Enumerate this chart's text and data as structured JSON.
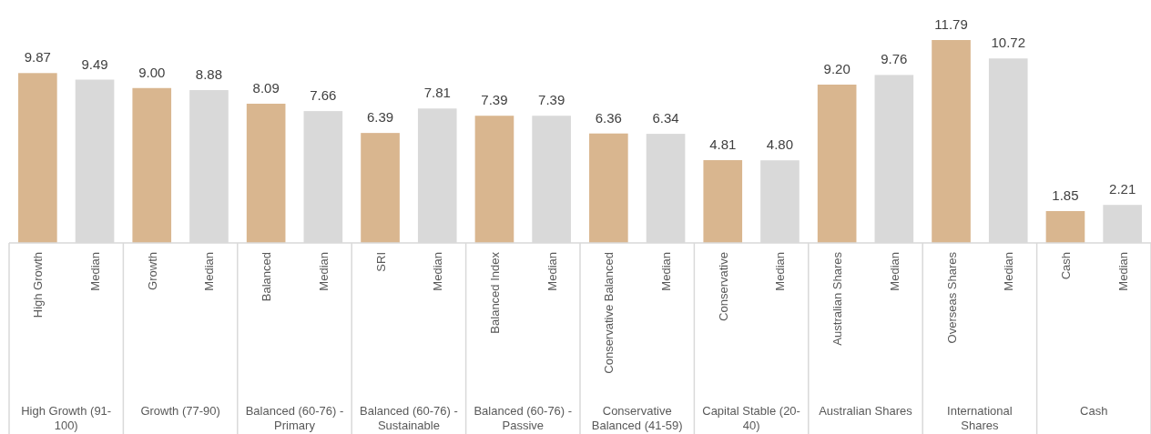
{
  "chart_data": {
    "type": "bar",
    "categories": [
      "High Growth",
      "Median",
      "Growth",
      "Median",
      "Balanced",
      "Median",
      "SRI",
      "Median",
      "Balanced Index",
      "Median",
      "Conservative Balanced",
      "Median",
      "Conservative",
      "Median",
      "Australian Shares",
      "Median",
      "Overseas Shares",
      "Median",
      "Cash",
      "Median"
    ],
    "values": [
      9.87,
      9.49,
      9.0,
      8.88,
      8.09,
      7.66,
      6.39,
      7.81,
      7.39,
      7.39,
      6.36,
      6.34,
      4.81,
      4.8,
      9.2,
      9.76,
      11.79,
      10.72,
      1.85,
      2.21
    ],
    "value_labels": [
      "9.87",
      "9.49",
      "9.00",
      "8.88",
      "8.09",
      "7.66",
      "6.39",
      "7.81",
      "7.39",
      "7.39",
      "6.36",
      "6.34",
      "4.81",
      "4.80",
      "9.20",
      "9.76",
      "11.79",
      "10.72",
      "1.85",
      "2.21"
    ],
    "colors": [
      "#d9b68f",
      "#d9d9d9",
      "#d9b68f",
      "#d9d9d9",
      "#d9b68f",
      "#d9d9d9",
      "#d9b68f",
      "#d9d9d9",
      "#d9b68f",
      "#d9d9d9",
      "#d9b68f",
      "#d9d9d9",
      "#d9b68f",
      "#d9d9d9",
      "#d9b68f",
      "#d9d9d9",
      "#d9b68f",
      "#d9d9d9",
      "#d9b68f",
      "#d9d9d9"
    ],
    "annotations": [
      "High Growth (91-100)",
      "Growth (77-90)",
      "Balanced (60-76) - Primary",
      "Balanced (60-76) - Sustainable",
      "Balanced (60-76) - Passive",
      "Conservative Balanced (41-59)",
      "Capital Stable (20-40)",
      "Australian Shares",
      "International Shares",
      "Cash"
    ]
  }
}
